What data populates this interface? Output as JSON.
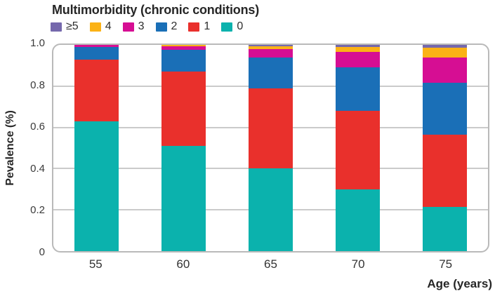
{
  "legend": {
    "items": [
      {
        "label": "≥5",
        "color": "#7568AC"
      },
      {
        "label": "4",
        "color": "#FBB216"
      },
      {
        "label": "3",
        "color": "#D60E93"
      },
      {
        "label": "2",
        "color": "#1A6FB7"
      },
      {
        "label": "1",
        "color": "#E9302C"
      },
      {
        "label": "0",
        "color": "#0BB2AD"
      }
    ]
  },
  "chart_data": {
    "type": "bar",
    "stacked": true,
    "title": "Multimorbidity (chronic conditions)",
    "xlabel": "Age (years)",
    "ylabel": "Pevalence (%)",
    "categories": [
      "55",
      "60",
      "65",
      "70",
      "75"
    ],
    "series": [
      {
        "name": "0",
        "color": "#0BB2AD",
        "values": [
          0.63,
          0.51,
          0.4,
          0.3,
          0.215
        ]
      },
      {
        "name": "1",
        "color": "#E9302C",
        "values": [
          0.3,
          0.36,
          0.39,
          0.38,
          0.35
        ]
      },
      {
        "name": "2",
        "color": "#1A6FB7",
        "values": [
          0.06,
          0.105,
          0.15,
          0.21,
          0.25
        ]
      },
      {
        "name": "3",
        "color": "#D60E93",
        "values": [
          0.01,
          0.02,
          0.04,
          0.075,
          0.125
        ]
      },
      {
        "name": "4",
        "color": "#FBB216",
        "values": [
          0.0,
          0.005,
          0.015,
          0.025,
          0.045
        ]
      },
      {
        "name": "≥5",
        "color": "#7568AC",
        "values": [
          0.0,
          0.0,
          0.005,
          0.01,
          0.015
        ]
      }
    ],
    "ylim": [
      0,
      1.0
    ],
    "yticks": [
      {
        "label": "1.0",
        "value": 1.0
      },
      {
        "label": "0.8",
        "value": 0.8
      },
      {
        "label": "0.6",
        "value": 0.6
      },
      {
        "label": "0.4",
        "value": 0.4
      },
      {
        "label": "0.2",
        "value": 0.2
      },
      {
        "label": "0",
        "value": 0.0
      }
    ],
    "grid": true,
    "legend_position": "top-left"
  }
}
